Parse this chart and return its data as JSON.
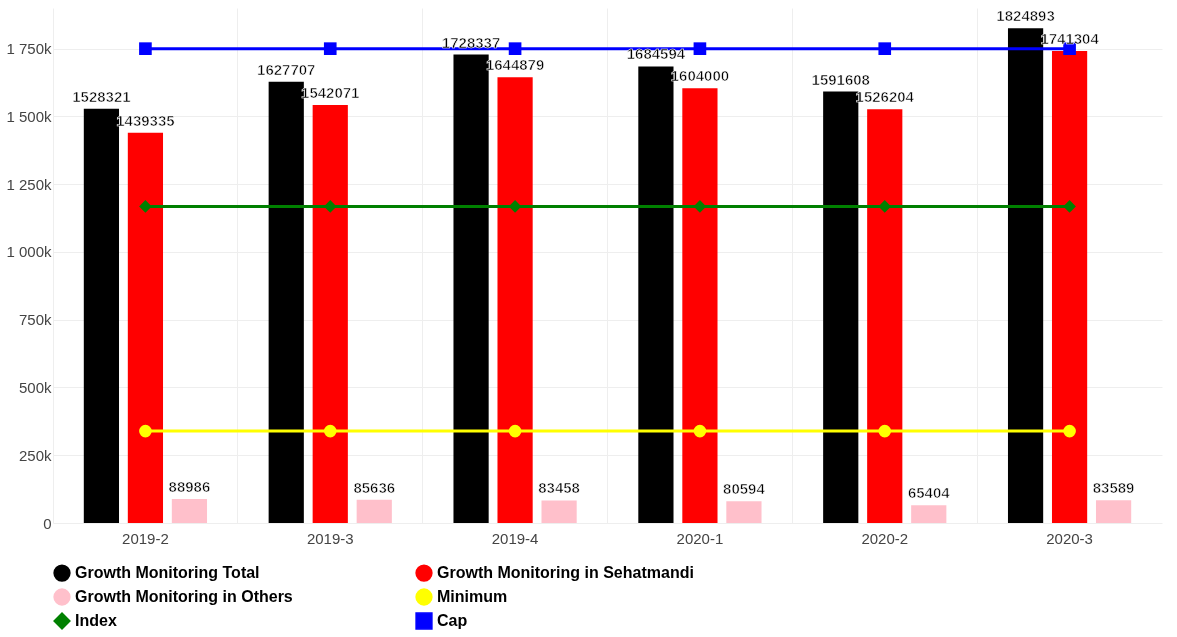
{
  "chart_data": {
    "type": "bar",
    "categories": [
      "2019-2",
      "2019-3",
      "2019-4",
      "2020-1",
      "2020-2",
      "2020-3"
    ],
    "series": [
      {
        "name": "Growth Monitoring Total",
        "color": "#000000",
        "values": [
          1528321,
          1627707,
          1728337,
          1684594,
          1591608,
          1824893
        ],
        "value_labels": [
          "1528321",
          "1627707",
          "1728337",
          "1684594",
          "1591608",
          "1824893"
        ]
      },
      {
        "name": "Growth Monitoring in Sehatmandi",
        "color": "#ff0000",
        "values": [
          1439335,
          1542071,
          1644879,
          1604000,
          1526204,
          1741304
        ],
        "value_labels": [
          "1439335",
          "1542071",
          "1644879",
          "1604000",
          "1526204",
          "1741304"
        ]
      },
      {
        "name": "Growth Monitoring in Others",
        "color": "#ffc0cb",
        "values": [
          88986,
          85636,
          83458,
          80594,
          65404,
          83589
        ],
        "value_labels": [
          "88986",
          "85636",
          "83458",
          "80594",
          "65404",
          "83589"
        ]
      },
      {
        "name": "Minimum",
        "type": "line",
        "marker": "circle",
        "color": "#ffff00",
        "values": [
          339000,
          339000,
          339000,
          339000,
          339000,
          339000
        ]
      },
      {
        "name": "Index",
        "type": "line",
        "marker": "diamond",
        "color": "#008000",
        "values": [
          1168000,
          1168000,
          1168000,
          1168000,
          1168000,
          1168000
        ]
      },
      {
        "name": "Cap",
        "type": "line",
        "marker": "square",
        "color": "#0000ff",
        "values": [
          1750000,
          1750000,
          1750000,
          1750000,
          1750000,
          1750000
        ]
      }
    ],
    "ylim": [
      0,
      1900000
    ],
    "yticks": [
      0,
      {
        "value": 250000,
        "label": "250k"
      },
      {
        "value": 500000,
        "label": "500k"
      },
      {
        "value": 750000,
        "label": "750k"
      },
      {
        "value": 1000000,
        "label": "1 000k"
      },
      {
        "value": 1250000,
        "label": "1 250k"
      },
      {
        "value": 1500000,
        "label": "1 500k"
      },
      {
        "value": 1750000,
        "label": "1 750k"
      }
    ],
    "grid": true,
    "legend": "bottom"
  }
}
